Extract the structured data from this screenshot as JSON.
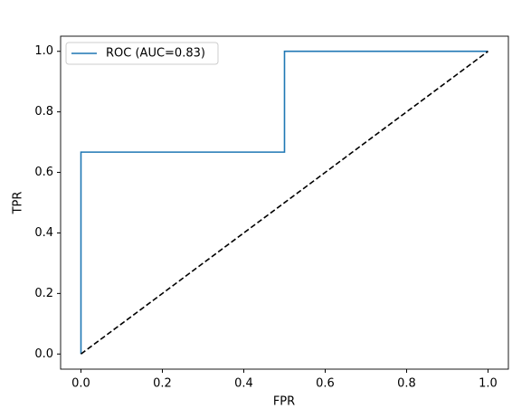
{
  "chart_data": {
    "type": "line",
    "x_label": "FPR",
    "y_label": "TPR",
    "series": [
      {
        "name": "ROC (AUC=0.83)",
        "color": "#1f77b4",
        "dash": "solid",
        "x": [
          0,
          0,
          0.5,
          0.5,
          1
        ],
        "values": [
          0,
          0.667,
          0.667,
          1,
          1
        ]
      },
      {
        "color": "#000000",
        "dash": "dashed",
        "x": [
          0,
          1
        ],
        "values": [
          0,
          1
        ]
      }
    ],
    "xlim": [
      -0.05,
      1.05
    ],
    "ylim": [
      -0.05,
      1.05
    ],
    "xticks": [
      {
        "value": 0,
        "label": "0.0"
      },
      0.2,
      0.4,
      0.6,
      0.8,
      {
        "value": 1,
        "label": "1.0"
      }
    ],
    "yticks": [
      {
        "value": 0,
        "label": "0.0"
      },
      0.2,
      0.4,
      0.6,
      0.8,
      {
        "value": 1,
        "label": "1.0"
      }
    ],
    "grid": false,
    "legend": "upper left"
  }
}
